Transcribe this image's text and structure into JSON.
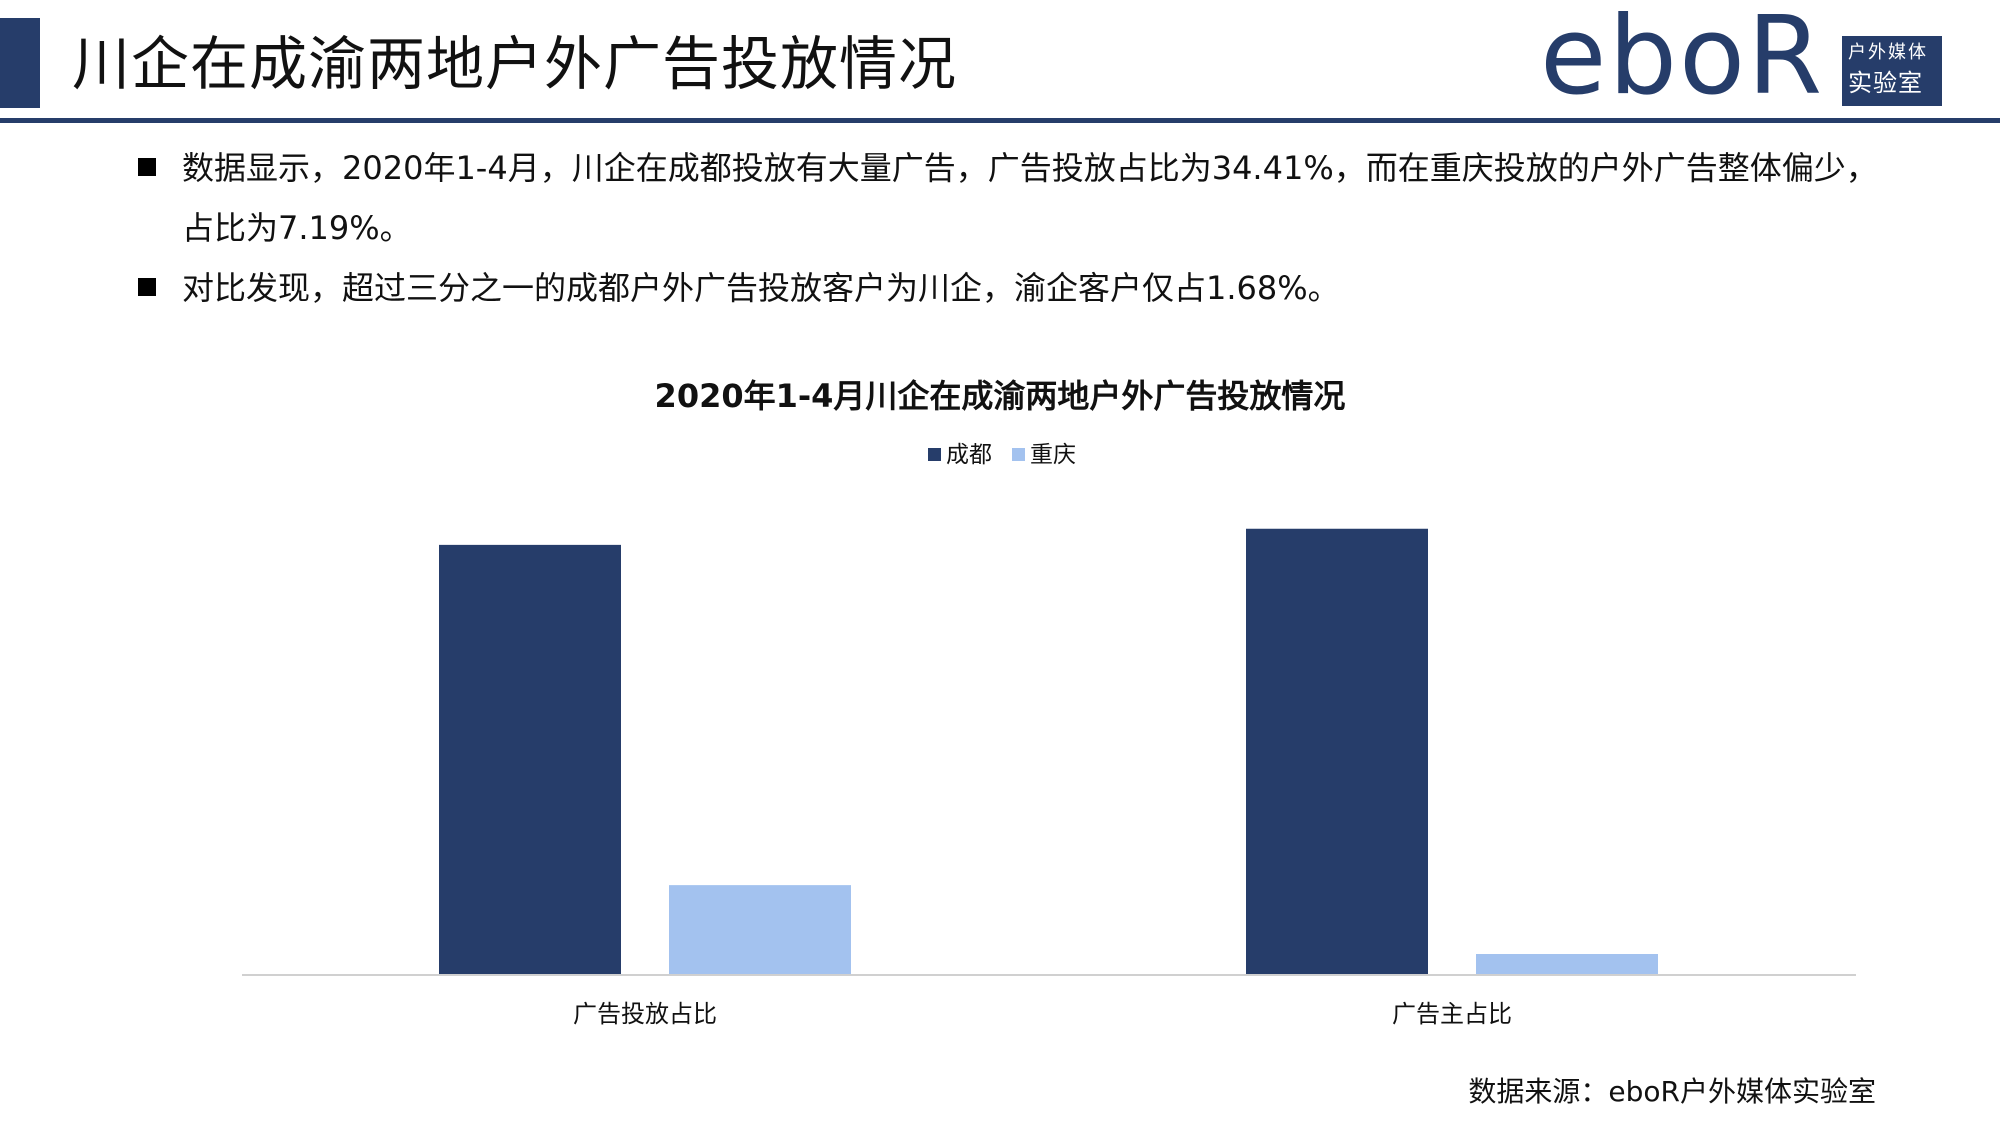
{
  "header": {
    "title": "川企在成渝两地户外广告投放情况",
    "accent_color": "#263d6a"
  },
  "logo": {
    "wordmark": "eboR",
    "line1": "户外媒体",
    "line2": "实验室"
  },
  "bullets": [
    "数据显示，2020年1-4月，川企在成都投放有大量广告，广告投放占比为34.41%，而在重庆投放的户外广告整体偏少，占比为7.19%。",
    "对比发现，超过三分之一的成都户外广告投放客户为川企，渝企客户仅占1.68%。"
  ],
  "chart_data": {
    "type": "bar",
    "title": "2020年1-4月川企在成渝两地户外广告投放情况",
    "categories": [
      "广告投放占比",
      "广告主占比"
    ],
    "series": [
      {
        "name": "成都",
        "values": [
          34.41,
          35.7
        ],
        "color": "#263d6a"
      },
      {
        "name": "重庆",
        "values": [
          7.19,
          1.68
        ],
        "color": "#a3c2ef"
      }
    ],
    "ylim": [
      0,
      40
    ],
    "legend": "top",
    "grid": false
  },
  "source": "数据来源：eboR户外媒体实验室"
}
